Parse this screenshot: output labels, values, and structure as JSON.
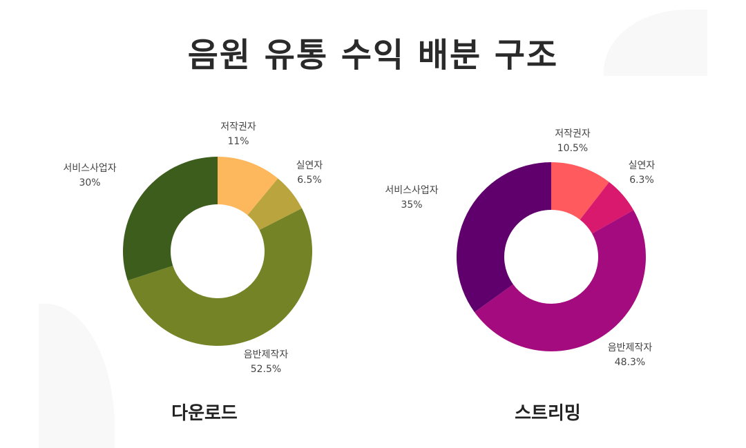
{
  "title": "음원 유통 수익 배분 구조",
  "chart_data": [
    {
      "type": "pie",
      "title": "다운로드",
      "categories": [
        "저작권자",
        "실연자",
        "음반제작자",
        "서비스사업자"
      ],
      "values": [
        11,
        6.5,
        52.5,
        30
      ],
      "value_labels": [
        "11%",
        "6.5%",
        "52.5%",
        "30%"
      ],
      "colors": [
        "#fdb85d",
        "#b9a43d",
        "#748326",
        "#3d5d1c"
      ]
    },
    {
      "type": "pie",
      "title": "스트리밍",
      "categories": [
        "저작권자",
        "실연자",
        "음반제작자",
        "서비스사업자"
      ],
      "values": [
        10.5,
        6.3,
        48.3,
        35
      ],
      "value_labels": [
        "10.5%",
        "6.3%",
        "48.3%",
        "35%"
      ],
      "colors": [
        "#ff5a5e",
        "#d9196d",
        "#a40b7e",
        "#5f006c"
      ]
    }
  ]
}
